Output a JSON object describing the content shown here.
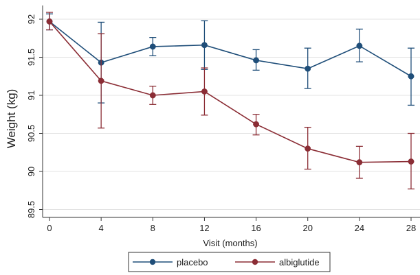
{
  "chart_data": {
    "type": "line",
    "title": "",
    "xlabel": "Visit (months)",
    "ylabel": "Weight (kg)",
    "x": [
      0,
      4,
      8,
      12,
      16,
      20,
      24,
      28
    ],
    "xticks": [
      0,
      4,
      8,
      12,
      16,
      20,
      24,
      28
    ],
    "xlim": [
      -1,
      29
    ],
    "yticks": [
      89.5,
      90,
      90.5,
      91,
      91.5,
      92
    ],
    "ylim": [
      89.45,
      92.1
    ],
    "grid": "horizontal",
    "legend_position": "bottom",
    "series": [
      {
        "name": "placebo",
        "color": "#1f4e79",
        "marker": "circle",
        "values": [
          91.97,
          91.43,
          91.64,
          91.66,
          91.46,
          91.35,
          91.65,
          91.25
        ],
        "error_low": [
          91.86,
          90.9,
          91.52,
          91.34,
          91.33,
          91.09,
          91.44,
          90.87
        ],
        "error_high": [
          92.07,
          91.96,
          91.76,
          91.98,
          91.6,
          91.62,
          91.87,
          91.62
        ]
      },
      {
        "name": "albiglutide",
        "color": "#8b2d35",
        "marker": "circle",
        "values": [
          91.97,
          91.19,
          91.0,
          91.05,
          90.62,
          90.3,
          90.12,
          90.13
        ],
        "error_low": [
          91.86,
          90.57,
          90.88,
          90.74,
          90.48,
          90.03,
          89.91,
          89.77
        ],
        "error_high": [
          92.09,
          91.81,
          91.12,
          91.36,
          90.75,
          90.58,
          90.33,
          90.5
        ]
      }
    ]
  }
}
